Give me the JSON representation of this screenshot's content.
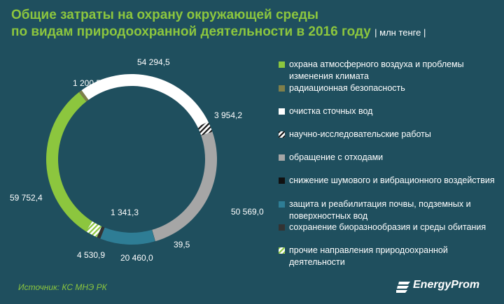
{
  "header": {
    "title_line1": "Общие затраты на охрану окружающей среды",
    "title_line2": "по видам природоохранной деятельности в 2016 году",
    "unit": "| млн тенге |"
  },
  "source": "Источник: КС МНЭ РК",
  "brand": "EnergyProm",
  "chart_data": {
    "type": "pie",
    "donut": true,
    "unit": "млн тенге",
    "legend_position": "right",
    "slices": [
      {
        "label": "охрана атмосферного воздуха и проблемы изменения климата",
        "value": 59752.4,
        "value_label": "59 752,4",
        "color": "#8cc63e",
        "pattern": "solid"
      },
      {
        "label": "радиационная безопасность",
        "value": 1200.5,
        "value_label": "1 200,5",
        "color": "#7f7f4a",
        "pattern": "solid"
      },
      {
        "label": "очистка сточных вод",
        "value": 54294.5,
        "value_label": "54 294,5",
        "color": "#ffffff",
        "pattern": "solid"
      },
      {
        "label": "научно-исследовательские работы",
        "value": 3954.2,
        "value_label": "3 954,2",
        "color": "#ffffff",
        "pattern": "hatch-dark"
      },
      {
        "label": "обращение с отходами",
        "value": 50569.0,
        "value_label": "50 569,0",
        "color": "#a6a6a6",
        "pattern": "solid"
      },
      {
        "label": "снижение шумового и вибрационного воздействия",
        "value": 39.5,
        "value_label": "39,5",
        "color": "#111111",
        "pattern": "solid"
      },
      {
        "label": "защита и реабилитация почвы, подземных и поверхностных вод",
        "value": 20460.0,
        "value_label": "20 460,0",
        "color": "#2e7d95",
        "pattern": "solid"
      },
      {
        "label": "сохранение биоразнообразия и среды обитания",
        "value": 1341.3,
        "value_label": "1 341,3",
        "color": "#333333",
        "pattern": "solid"
      },
      {
        "label": "прочие направления природоохранной деятельности",
        "value": 4530.9,
        "value_label": "4 530,9",
        "color": "#ffffff",
        "pattern": "hatch-green"
      }
    ]
  }
}
